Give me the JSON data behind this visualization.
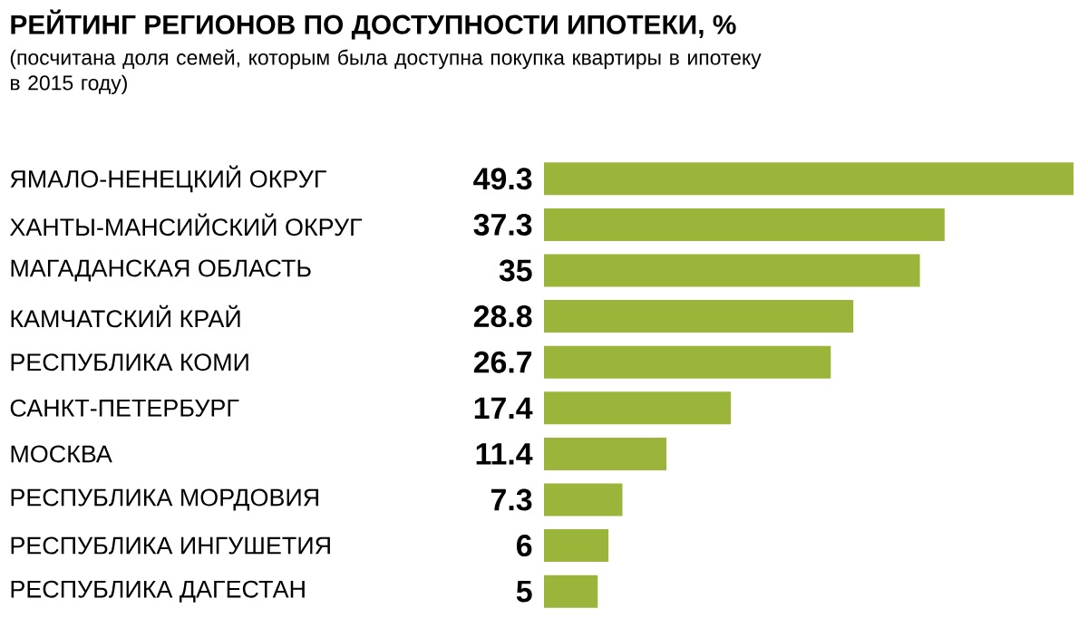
{
  "chart_data": {
    "type": "bar",
    "orientation": "horizontal",
    "title": "РЕЙТИНГ РЕГИОНОВ ПО ДОСТУПНОСТИ ИПОТЕКИ, %",
    "subtitle": "(посчитана доля семей, которым была доступна покупка квартиры в ипотеку в 2015 году)",
    "categories": [
      "ЯМАЛО-НЕНЕЦКИЙ ОКРУГ",
      "ХАНТЫ-МАНСИЙСКИЙ ОКРУГ",
      "МАГАДАНСКАЯ ОБЛАСТЬ",
      "КАМЧАТСКИЙ КРАЙ",
      "РЕСПУБЛИКА КОМИ",
      "САНКТ-ПЕТЕРБУРГ",
      "МОСКВА",
      "РЕСПУБЛИКА МОРДОВИЯ",
      "РЕСПУБЛИКА ИНГУШЕТИЯ",
      "РЕСПУБЛИКА ДАГЕСТАН"
    ],
    "values": [
      49.3,
      37.3,
      35,
      28.8,
      26.7,
      17.4,
      11.4,
      7.3,
      6,
      5
    ],
    "color": "#9bb53a",
    "data_labels": true
  }
}
